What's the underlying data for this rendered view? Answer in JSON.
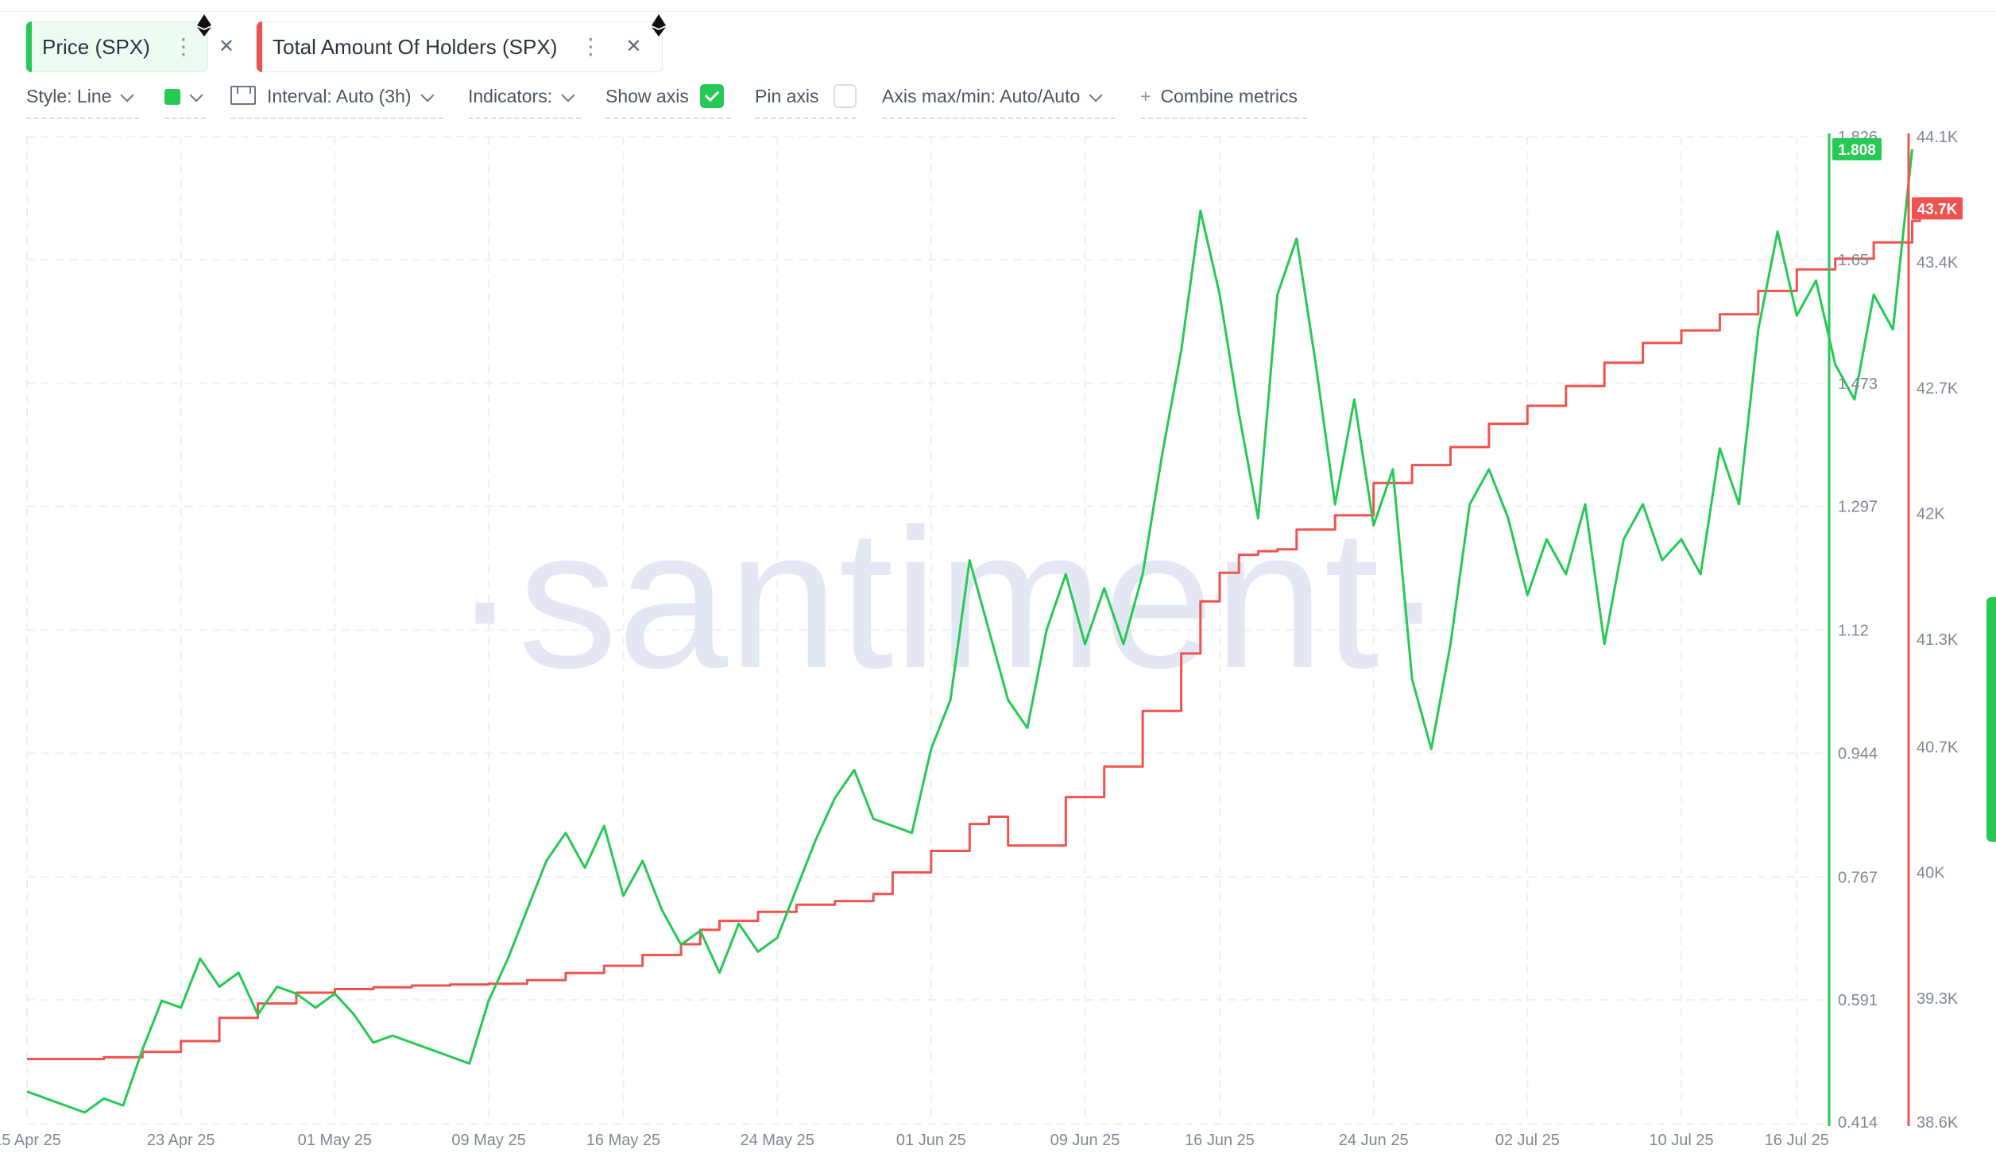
{
  "metrics": [
    {
      "label": "Price (SPX)",
      "color": "#26c953",
      "dots_icon": "more-vertical-icon",
      "close_icon": "close-icon",
      "chain_icon": "ethereum-icon"
    },
    {
      "label": "Total Amount Of Holders (SPX)",
      "color": "#ef5350",
      "dots_icon": "more-vertical-icon",
      "close_icon": "close-icon",
      "chain_icon": "ethereum-icon"
    }
  ],
  "toolbar": {
    "style": "Style: Line",
    "line_color": "#26c953",
    "interval": "Interval: Auto (3h)",
    "indicators": "Indicators:",
    "show_axis": "Show axis",
    "show_axis_checked": true,
    "pin_axis": "Pin axis",
    "pin_axis_checked": false,
    "axis_maxmin": "Axis max/min: Auto/Auto",
    "combine_plus": "+",
    "combine": "Combine metrics"
  },
  "watermark": "·santiment·",
  "chart_data": {
    "type": "line",
    "title": "",
    "x_tick_labels": [
      "15 Apr 25",
      "23 Apr 25",
      "01 May 25",
      "09 May 25",
      "16 May 25",
      "24 May 25",
      "01 Jun 25",
      "09 Jun 25",
      "16 Jun 25",
      "24 Jun 25",
      "02 Jul 25",
      "10 Jul 25",
      "16 Jul 25"
    ],
    "x_tick_days": [
      0,
      8,
      16,
      24,
      31,
      39,
      47,
      55,
      62,
      70,
      78,
      86,
      92
    ],
    "x_range_days": [
      0,
      93.6
    ],
    "grid": true,
    "price_axis": {
      "side": "right",
      "color": "#26c953",
      "range": [
        0.414,
        1.826
      ],
      "ticks": [
        0.414,
        0.591,
        0.767,
        0.944,
        1.12,
        1.297,
        1.473,
        1.65,
        1.826
      ],
      "tick_labels": [
        "0.414",
        "0.591",
        "0.767",
        "0.944",
        "1.12",
        "1.297",
        "1.473",
        "1.65",
        "1.826"
      ],
      "current_label": "1.808",
      "current_value": 1.808
    },
    "holders_axis": {
      "side": "right",
      "color": "#ef5350",
      "range": [
        38600,
        44100
      ],
      "ticks": [
        38600,
        39300,
        40000,
        40700,
        41300,
        42000,
        42700,
        43400,
        44100
      ],
      "tick_labels": [
        "38.6K",
        "39.3K",
        "40K",
        "40.7K",
        "41.3K",
        "42K",
        "42.7K",
        "43.4K",
        "44.1K"
      ],
      "current_label": "43.7K",
      "current_value": 43700
    },
    "series": [
      {
        "name": "Price (SPX)",
        "axis": "price_axis",
        "color": "#26c953",
        "points": [
          [
            0,
            0.46
          ],
          [
            1,
            0.45
          ],
          [
            2,
            0.44
          ],
          [
            3,
            0.43
          ],
          [
            4,
            0.45
          ],
          [
            5,
            0.44
          ],
          [
            6,
            0.52
          ],
          [
            7,
            0.59
          ],
          [
            8,
            0.58
          ],
          [
            9,
            0.65
          ],
          [
            10,
            0.61
          ],
          [
            11,
            0.63
          ],
          [
            12,
            0.57
          ],
          [
            13,
            0.61
          ],
          [
            14,
            0.6
          ],
          [
            15,
            0.58
          ],
          [
            16,
            0.6
          ],
          [
            17,
            0.57
          ],
          [
            18,
            0.53
          ],
          [
            19,
            0.54
          ],
          [
            20,
            0.53
          ],
          [
            21,
            0.52
          ],
          [
            22,
            0.51
          ],
          [
            23,
            0.5
          ],
          [
            24,
            0.59
          ],
          [
            25,
            0.65
          ],
          [
            26,
            0.72
          ],
          [
            27,
            0.79
          ],
          [
            28,
            0.83
          ],
          [
            29,
            0.78
          ],
          [
            30,
            0.84
          ],
          [
            31,
            0.74
          ],
          [
            32,
            0.79
          ],
          [
            33,
            0.72
          ],
          [
            34,
            0.67
          ],
          [
            35,
            0.69
          ],
          [
            36,
            0.63
          ],
          [
            37,
            0.7
          ],
          [
            38,
            0.66
          ],
          [
            39,
            0.68
          ],
          [
            40,
            0.75
          ],
          [
            41,
            0.82
          ],
          [
            42,
            0.88
          ],
          [
            43,
            0.92
          ],
          [
            44,
            0.85
          ],
          [
            45,
            0.84
          ],
          [
            46,
            0.83
          ],
          [
            47,
            0.95
          ],
          [
            48,
            1.02
          ],
          [
            49,
            1.22
          ],
          [
            50,
            1.12
          ],
          [
            51,
            1.02
          ],
          [
            52,
            0.98
          ],
          [
            53,
            1.12
          ],
          [
            54,
            1.2
          ],
          [
            55,
            1.1
          ],
          [
            56,
            1.18
          ],
          [
            57,
            1.1
          ],
          [
            58,
            1.2
          ],
          [
            59,
            1.37
          ],
          [
            60,
            1.52
          ],
          [
            61,
            1.72
          ],
          [
            62,
            1.6
          ],
          [
            63,
            1.43
          ],
          [
            64,
            1.28
          ],
          [
            65,
            1.6
          ],
          [
            66,
            1.68
          ],
          [
            67,
            1.5
          ],
          [
            68,
            1.3
          ],
          [
            69,
            1.45
          ],
          [
            70,
            1.27
          ],
          [
            71,
            1.35
          ],
          [
            72,
            1.05
          ],
          [
            73,
            0.95
          ],
          [
            74,
            1.1
          ],
          [
            75,
            1.3
          ],
          [
            76,
            1.35
          ],
          [
            77,
            1.28
          ],
          [
            78,
            1.17
          ],
          [
            79,
            1.25
          ],
          [
            80,
            1.2
          ],
          [
            81,
            1.3
          ],
          [
            82,
            1.1
          ],
          [
            83,
            1.25
          ],
          [
            84,
            1.3
          ],
          [
            85,
            1.22
          ],
          [
            86,
            1.25
          ],
          [
            87,
            1.2
          ],
          [
            88,
            1.38
          ],
          [
            89,
            1.3
          ],
          [
            90,
            1.55
          ],
          [
            91,
            1.69
          ],
          [
            92,
            1.57
          ],
          [
            93,
            1.62
          ],
          [
            94,
            1.5
          ],
          [
            95,
            1.45
          ],
          [
            96,
            1.6
          ],
          [
            97,
            1.55
          ],
          [
            98,
            1.808
          ]
        ]
      },
      {
        "name": "Total Amount Of Holders (SPX)",
        "axis": "holders_axis",
        "color": "#ef5350",
        "points": [
          [
            0,
            38960
          ],
          [
            4,
            38970
          ],
          [
            6,
            39000
          ],
          [
            8,
            39060
          ],
          [
            10,
            39190
          ],
          [
            12,
            39270
          ],
          [
            14,
            39330
          ],
          [
            16,
            39350
          ],
          [
            18,
            39360
          ],
          [
            20,
            39370
          ],
          [
            22,
            39375
          ],
          [
            24,
            39380
          ],
          [
            26,
            39400
          ],
          [
            28,
            39440
          ],
          [
            30,
            39480
          ],
          [
            32,
            39540
          ],
          [
            34,
            39600
          ],
          [
            35,
            39680
          ],
          [
            36,
            39730
          ],
          [
            38,
            39780
          ],
          [
            40,
            39820
          ],
          [
            42,
            39840
          ],
          [
            44,
            39880
          ],
          [
            45,
            40000
          ],
          [
            47,
            40120
          ],
          [
            49,
            40270
          ],
          [
            50,
            40310
          ],
          [
            51,
            40150
          ],
          [
            52,
            40150
          ],
          [
            54,
            40420
          ],
          [
            56,
            40590
          ],
          [
            58,
            40900
          ],
          [
            60,
            41220
          ],
          [
            61,
            41510
          ],
          [
            62,
            41670
          ],
          [
            63,
            41770
          ],
          [
            64,
            41790
          ],
          [
            65,
            41800
          ],
          [
            66,
            41910
          ],
          [
            68,
            41990
          ],
          [
            70,
            42170
          ],
          [
            72,
            42270
          ],
          [
            74,
            42370
          ],
          [
            76,
            42500
          ],
          [
            78,
            42600
          ],
          [
            80,
            42710
          ],
          [
            82,
            42840
          ],
          [
            84,
            42950
          ],
          [
            86,
            43020
          ],
          [
            88,
            43110
          ],
          [
            90,
            43240
          ],
          [
            92,
            43360
          ],
          [
            94,
            43420
          ],
          [
            96,
            43510
          ],
          [
            98,
            43630
          ],
          [
            98.4,
            43700
          ]
        ]
      }
    ]
  }
}
